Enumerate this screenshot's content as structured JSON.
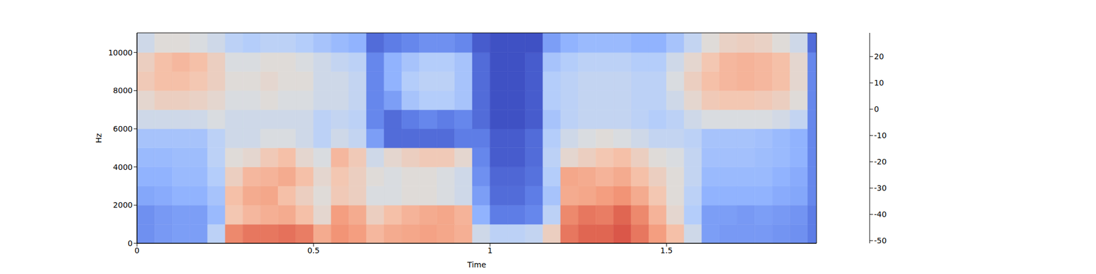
{
  "chart_data": {
    "type": "heatmap",
    "xlabel": "Time",
    "ylabel": "Hz",
    "xlim": [
      0,
      1.925
    ],
    "xticks": [
      0,
      0.5,
      1,
      1.5
    ],
    "ylim": [
      0,
      11025
    ],
    "yticks": [
      0,
      2000,
      4000,
      6000,
      8000,
      10000
    ],
    "x_bins": [
      0,
      0.05,
      0.1,
      0.15,
      0.2,
      0.25,
      0.3,
      0.35,
      0.4,
      0.45,
      0.5,
      0.55,
      0.6,
      0.65,
      0.7,
      0.75,
      0.8,
      0.85,
      0.9,
      0.95,
      1.0,
      1.05,
      1.1,
      1.15,
      1.2,
      1.25,
      1.3,
      1.35,
      1.4,
      1.45,
      1.5,
      1.55,
      1.6,
      1.65,
      1.7,
      1.75,
      1.8,
      1.85,
      1.9,
      1.925
    ],
    "y_bins": [
      0,
      1000,
      2000,
      3000,
      4000,
      5000,
      6000,
      7000,
      8000,
      9000,
      10000,
      11025
    ],
    "cells": [
      [
        -38,
        -36,
        -35,
        -35,
        -20,
        12,
        15,
        15,
        16,
        14,
        5,
        10,
        8,
        2,
        5,
        6,
        7,
        6,
        4,
        -15,
        -20,
        -20,
        -18,
        -5,
        15,
        18,
        18,
        20,
        15,
        8,
        0,
        -15,
        -35,
        -36,
        -36,
        -36,
        -37,
        -38,
        -42
      ],
      [
        -38,
        -36,
        -35,
        -35,
        -28,
        -2,
        2,
        4,
        5,
        0,
        -8,
        8,
        5,
        -5,
        0,
        3,
        5,
        6,
        3,
        -30,
        -42,
        -42,
        -40,
        -20,
        12,
        15,
        14,
        18,
        12,
        3,
        -8,
        -22,
        -35,
        -35,
        -36,
        -35,
        -36,
        -37,
        -42
      ],
      [
        -33,
        -32,
        -30,
        -30,
        -25,
        0,
        5,
        6,
        0,
        -5,
        -10,
        -3,
        -5,
        -12,
        -12,
        -10,
        -10,
        -12,
        -15,
        -35,
        -45,
        -45,
        -42,
        -25,
        5,
        6,
        8,
        10,
        5,
        -2,
        -10,
        -20,
        -30,
        -30,
        -30,
        -30,
        -32,
        -33,
        -40
      ],
      [
        -30,
        -30,
        -28,
        -28,
        -22,
        -5,
        2,
        3,
        5,
        0,
        -8,
        -2,
        -5,
        -10,
        -12,
        -10,
        -10,
        -12,
        -15,
        -38,
        -46,
        -46,
        -44,
        -22,
        6,
        5,
        3,
        5,
        0,
        -5,
        -10,
        -18,
        -28,
        -28,
        -28,
        -28,
        -30,
        -32,
        -40
      ],
      [
        -28,
        -28,
        -27,
        -27,
        -20,
        -10,
        -8,
        -3,
        0,
        -8,
        -12,
        2,
        -3,
        -15,
        -8,
        -5,
        -3,
        -3,
        -8,
        -40,
        -48,
        -48,
        -45,
        -20,
        -8,
        -5,
        -2,
        0,
        -5,
        -10,
        -12,
        -18,
        -26,
        -26,
        -26,
        -27,
        -28,
        -30,
        -40
      ],
      [
        -25,
        -25,
        -25,
        -25,
        -20,
        -15,
        -15,
        -12,
        -12,
        -15,
        -20,
        -15,
        -18,
        -35,
        -45,
        -45,
        -45,
        -45,
        -42,
        -42,
        -48,
        -48,
        -45,
        -22,
        -15,
        -12,
        -10,
        -12,
        -15,
        -18,
        -18,
        -20,
        -25,
        -25,
        -25,
        -26,
        -28,
        -30,
        -40
      ],
      [
        -15,
        -15,
        -15,
        -15,
        -12,
        -15,
        -15,
        -15,
        -15,
        -15,
        -20,
        -18,
        -20,
        -40,
        -45,
        -42,
        -40,
        -42,
        -40,
        -45,
        -50,
        -50,
        -48,
        -25,
        -20,
        -18,
        -18,
        -18,
        -20,
        -22,
        -20,
        -15,
        -12,
        -12,
        -12,
        -12,
        -14,
        -18,
        -40
      ],
      [
        -8,
        -5,
        -5,
        -6,
        -8,
        -12,
        -12,
        -10,
        -12,
        -12,
        -15,
        -15,
        -18,
        -40,
        -35,
        -25,
        -22,
        -22,
        -25,
        -45,
        -50,
        -50,
        -48,
        -22,
        -20,
        -18,
        -18,
        -18,
        -20,
        -20,
        -15,
        -8,
        -3,
        -2,
        -2,
        -3,
        -5,
        -10,
        -40
      ],
      [
        -3,
        0,
        0,
        -2,
        -5,
        -10,
        -10,
        -8,
        -10,
        -10,
        -15,
        -15,
        -18,
        -40,
        -30,
        -22,
        -20,
        -20,
        -25,
        -45,
        -50,
        -50,
        -48,
        -22,
        -20,
        -18,
        -18,
        -18,
        -20,
        -20,
        -12,
        -5,
        0,
        2,
        3,
        2,
        0,
        -8,
        -40
      ],
      [
        -5,
        0,
        2,
        0,
        -5,
        -12,
        -12,
        -10,
        -10,
        -12,
        -15,
        -18,
        -20,
        -40,
        -30,
        -25,
        -22,
        -22,
        -25,
        -45,
        -50,
        -50,
        -48,
        -25,
        -22,
        -20,
        -20,
        -20,
        -22,
        -22,
        -15,
        -8,
        -2,
        2,
        3,
        2,
        0,
        -8,
        -40
      ],
      [
        -15,
        -10,
        -10,
        -12,
        -15,
        -20,
        -22,
        -20,
        -20,
        -22,
        -25,
        -28,
        -30,
        -45,
        -42,
        -40,
        -38,
        -38,
        -40,
        -48,
        -50,
        -50,
        -50,
        -35,
        -30,
        -28,
        -28,
        -28,
        -30,
        -30,
        -25,
        -18,
        -10,
        -6,
        -5,
        -6,
        -10,
        -15,
        -45
      ]
    ],
    "clim": [
      -51,
      29
    ],
    "cticks": [
      -50,
      -40,
      -30,
      -20,
      -10,
      0,
      10,
      20
    ]
  }
}
